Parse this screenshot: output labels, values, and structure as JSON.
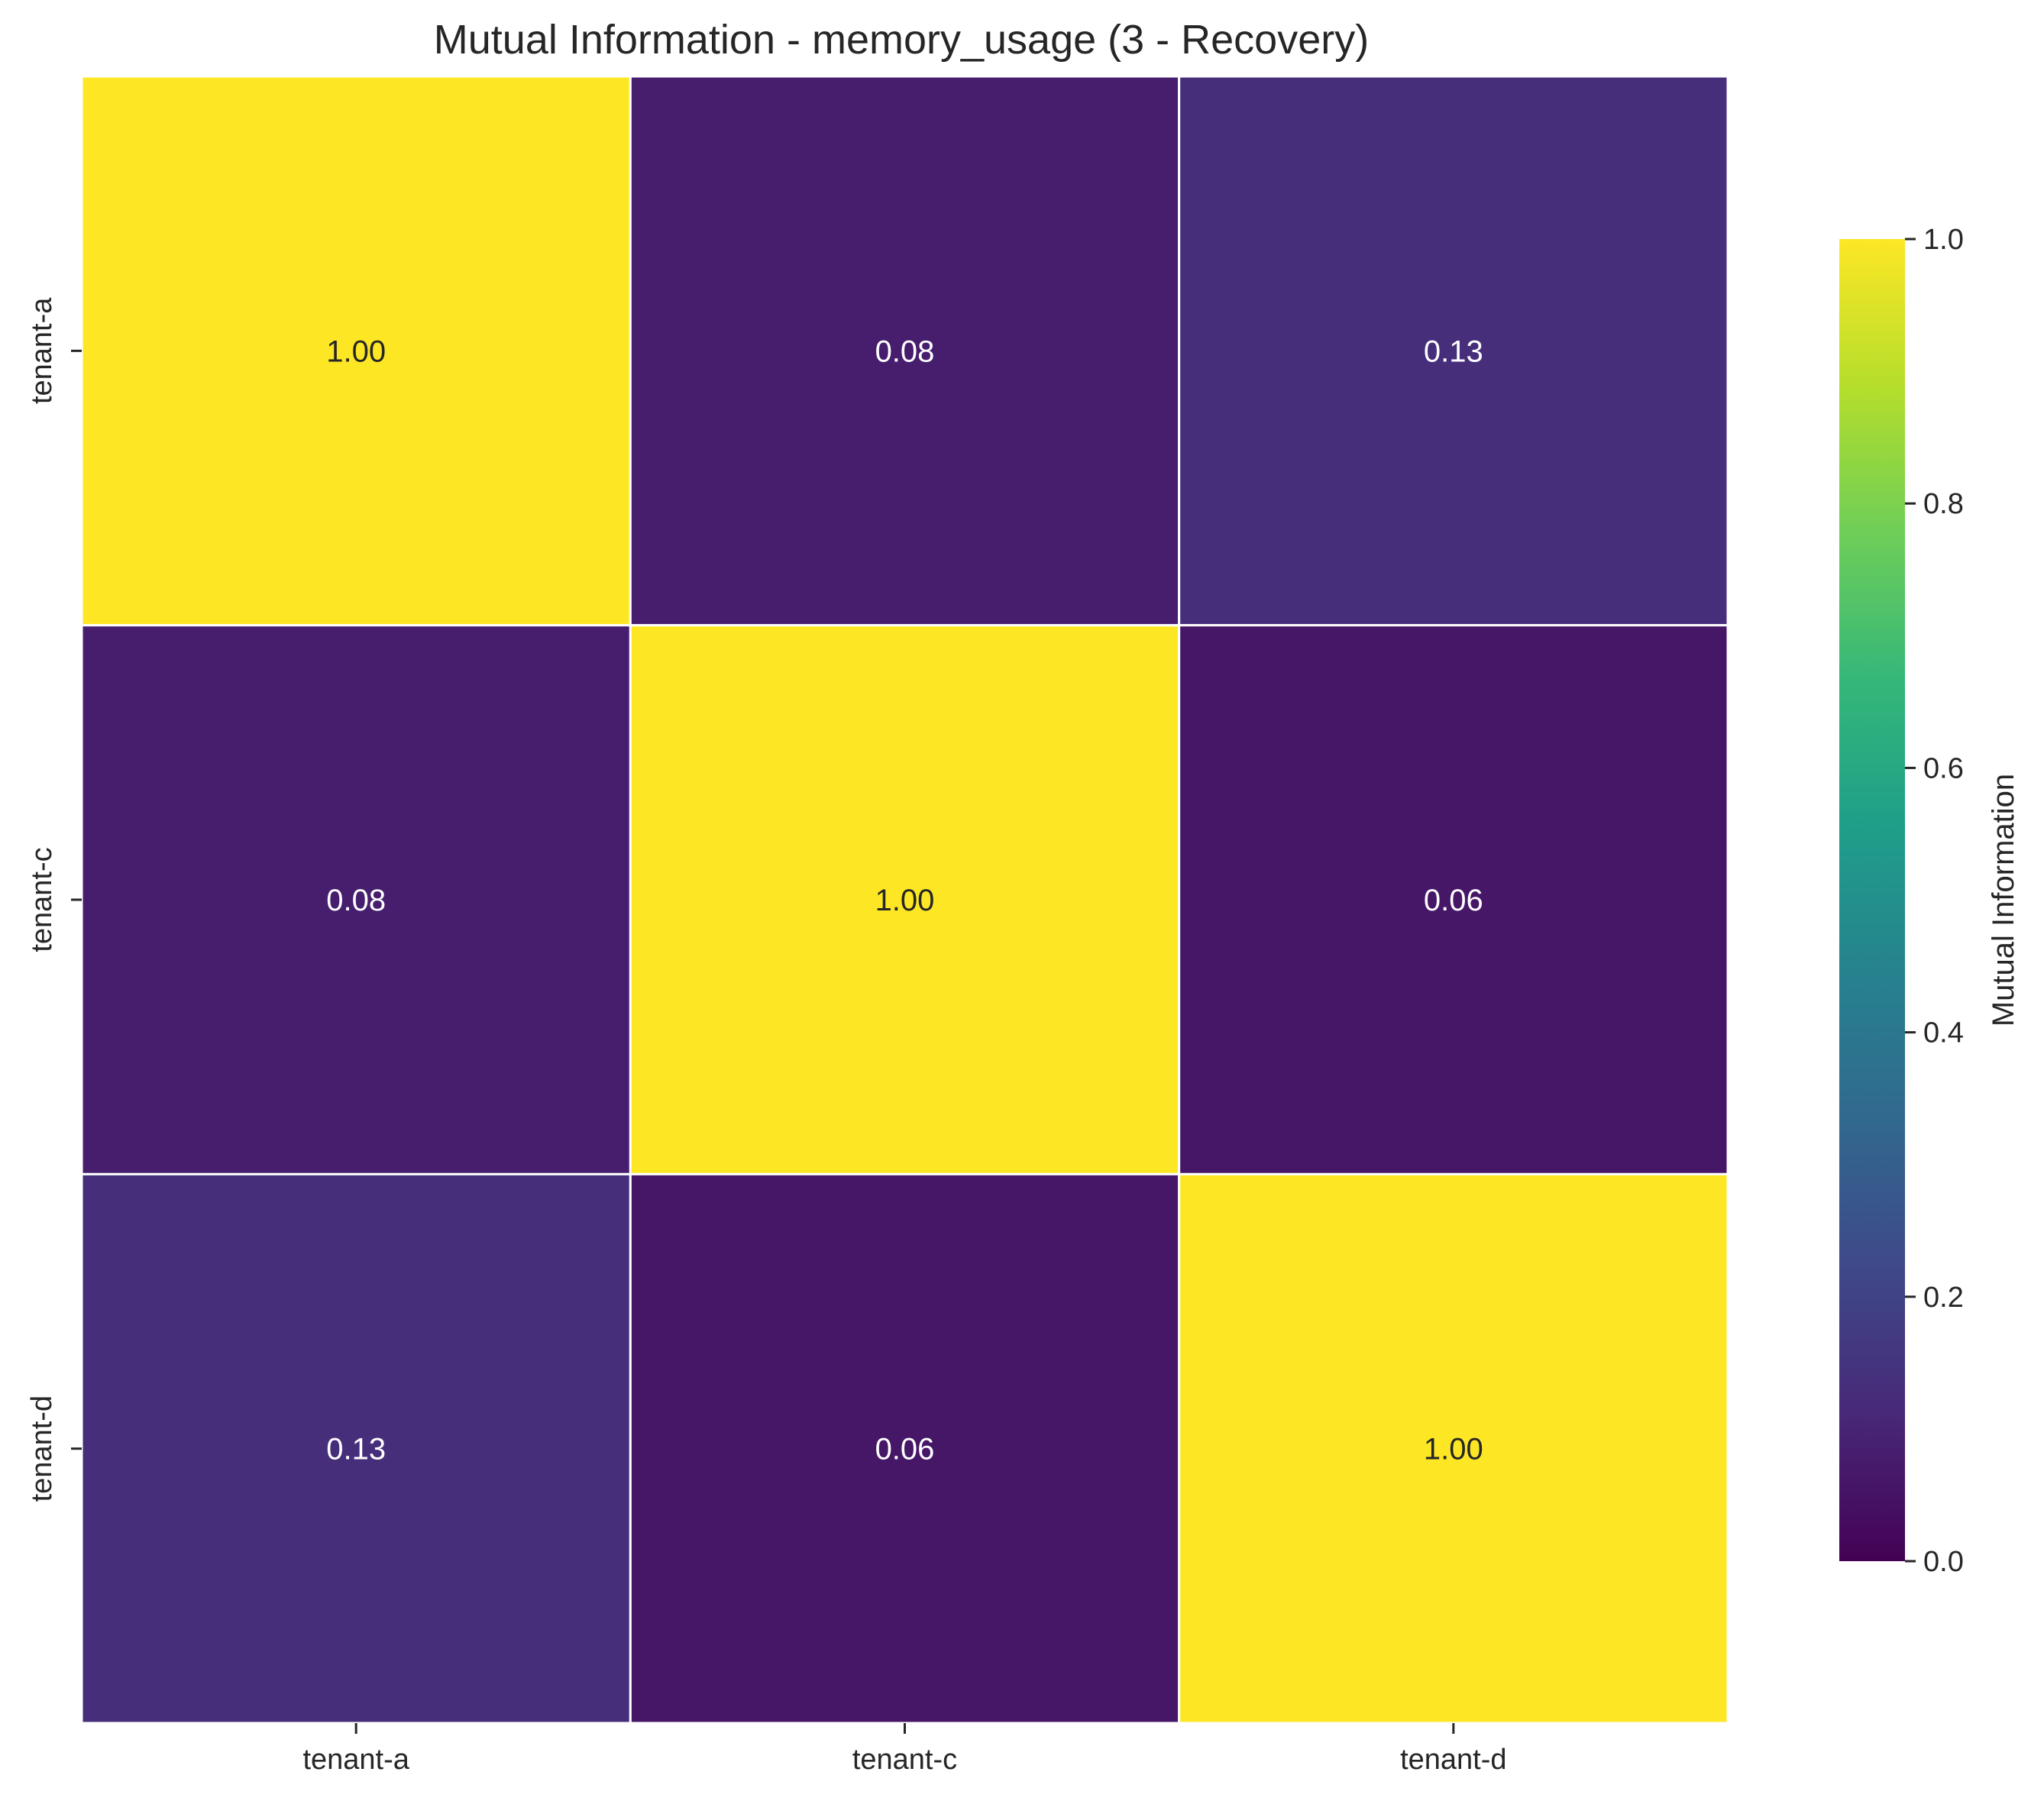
{
  "chart_data": {
    "type": "heatmap",
    "title": "Mutual Information - memory_usage (3 - Recovery)",
    "x_categories": [
      "tenant-a",
      "tenant-c",
      "tenant-d"
    ],
    "y_categories": [
      "tenant-a",
      "tenant-c",
      "tenant-d"
    ],
    "values": [
      [
        1.0,
        0.08,
        0.13
      ],
      [
        0.08,
        1.0,
        0.06
      ],
      [
        0.13,
        0.06,
        1.0
      ]
    ],
    "value_labels": [
      [
        "1.00",
        "0.08",
        "0.13"
      ],
      [
        "0.08",
        "1.00",
        "0.06"
      ],
      [
        "0.13",
        "0.06",
        "1.00"
      ]
    ],
    "xlabel": "",
    "ylabel": "",
    "colormap": "viridis",
    "colorbar": {
      "label": "Mutual Information",
      "range": [
        0.0,
        1.0
      ],
      "ticks": [
        "0.0",
        "0.2",
        "0.4",
        "0.6",
        "0.8",
        "1.0"
      ],
      "placement": "right"
    },
    "grid": false,
    "cell_border_color": "#ffffff"
  },
  "colors": {
    "viridis": [
      "#440154",
      "#482878",
      "#3e4989",
      "#31688e",
      "#26828e",
      "#1f9e89",
      "#35b779",
      "#6ece58",
      "#b5de2b",
      "#fde725"
    ],
    "text_light": "#ffffff",
    "text_dark": "#262626",
    "axis": "#262626"
  }
}
